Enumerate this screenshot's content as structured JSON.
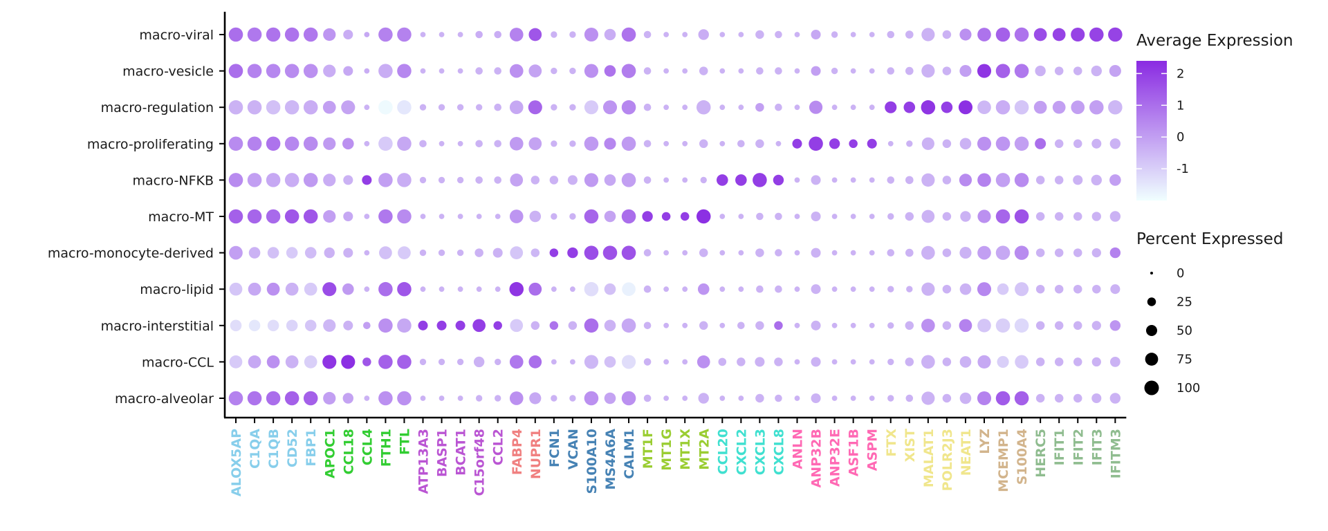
{
  "chart_data": {
    "type": "dotplot",
    "title": "",
    "xlabel": "",
    "ylabel": "",
    "rows": [
      "macro-viral",
      "macro-vesicle",
      "macro-regulation",
      "macro-proliferating",
      "macro-NFKB",
      "macro-MT",
      "macro-monocyte-derived",
      "macro-lipid",
      "macro-interstitial",
      "macro-CCL",
      "macro-alveolar"
    ],
    "genes": [
      "ALOX5AP",
      "C1QA",
      "C1QB",
      "CD52",
      "FBP1",
      "APOC1",
      "CCL18",
      "CCL4",
      "FTH1",
      "FTL",
      "ATP13A3",
      "BASP1",
      "BCAT1",
      "C15orf48",
      "CCL2",
      "FABP4",
      "NUPR1",
      "FCN1",
      "VCAN",
      "S100A10",
      "MS4A6A",
      "CALM1",
      "MT1F",
      "MT1G",
      "MT1X",
      "MT2A",
      "CCL20",
      "CXCL2",
      "CXCL3",
      "CXCL8",
      "ANLN",
      "ANP32B",
      "ANP32E",
      "ASF1B",
      "ASPM",
      "FTX",
      "XIST",
      "MALAT1",
      "POLR2J3",
      "NEAT1",
      "LYZ",
      "MCEMP1",
      "S100A4",
      "HERC5",
      "IFIT1",
      "IFIT2",
      "IFIT3",
      "IFITM3"
    ],
    "gene_colors": [
      "#87CEEB",
      "#87CEEB",
      "#87CEEB",
      "#87CEEB",
      "#87CEEB",
      "#32CD32",
      "#32CD32",
      "#32CD32",
      "#32CD32",
      "#32CD32",
      "#BA55D3",
      "#BA55D3",
      "#BA55D3",
      "#BA55D3",
      "#BA55D3",
      "#F08080",
      "#F08080",
      "#4682B4",
      "#4682B4",
      "#4682B4",
      "#4682B4",
      "#4682B4",
      "#9ACD32",
      "#9ACD32",
      "#9ACD32",
      "#9ACD32",
      "#40E0D0",
      "#40E0D0",
      "#40E0D0",
      "#40E0D0",
      "#FF69B4",
      "#FF69B4",
      "#FF69B4",
      "#FF69B4",
      "#FF69B4",
      "#F0E68C",
      "#F0E68C",
      "#F0E68C",
      "#F0E68C",
      "#F0E68C",
      "#D2B48C",
      "#D2B48C",
      "#D2B48C",
      "#8FBC8F",
      "#8FBC8F",
      "#8FBC8F",
      "#8FBC8F",
      "#8FBC8F"
    ],
    "avg_expression": [
      [
        1.0,
        0.8,
        0.9,
        0.9,
        0.8,
        0.2,
        -0.3,
        -0.2,
        0.6,
        0.6,
        -0.4,
        -0.4,
        -0.4,
        -0.3,
        -0.3,
        0.6,
        1.5,
        -0.4,
        -0.4,
        0.3,
        -0.3,
        0.9,
        -0.4,
        -0.4,
        -0.4,
        -0.3,
        -0.4,
        -0.4,
        -0.4,
        -0.4,
        -0.4,
        -0.2,
        -0.4,
        -0.4,
        -0.4,
        -0.4,
        -0.4,
        -0.4,
        -0.4,
        0.3,
        0.9,
        1.3,
        0.9,
        1.7,
        1.9,
        1.9,
        1.9,
        1.9
      ],
      [
        1.0,
        0.6,
        0.5,
        0.4,
        0.3,
        -0.3,
        -0.2,
        -0.3,
        -0.3,
        0.5,
        -0.4,
        -0.4,
        -0.4,
        -0.4,
        -0.4,
        0.3,
        -0.1,
        -0.4,
        -0.4,
        0.3,
        0.9,
        0.7,
        -0.4,
        -0.4,
        -0.4,
        -0.4,
        -0.4,
        -0.4,
        -0.4,
        -0.4,
        -0.4,
        0.0,
        -0.4,
        -0.4,
        -0.4,
        -0.4,
        -0.4,
        -0.4,
        -0.4,
        0.0,
        2.2,
        1.3,
        0.8,
        -0.4,
        -0.4,
        -0.4,
        -0.4,
        -0.1
      ],
      [
        -0.4,
        -0.4,
        -0.7,
        -0.5,
        -0.3,
        0.0,
        -0.1,
        -0.4,
        -1.9,
        -1.5,
        -0.4,
        -0.4,
        -0.4,
        -0.4,
        -0.4,
        -0.2,
        1.2,
        -0.4,
        -0.4,
        -0.9,
        0.2,
        0.5,
        -0.4,
        -0.4,
        -0.4,
        -0.4,
        -0.4,
        -0.4,
        0.0,
        -0.4,
        -0.4,
        0.4,
        -0.4,
        -0.4,
        -0.4,
        2.0,
        2.0,
        2.2,
        2.0,
        2.3,
        -0.5,
        -0.3,
        -0.8,
        0.0,
        0.0,
        0.0,
        0.0,
        -0.5
      ],
      [
        0.4,
        0.6,
        0.9,
        0.5,
        0.4,
        0.1,
        0.3,
        -0.4,
        -0.9,
        -0.2,
        -0.4,
        -0.4,
        -0.4,
        -0.4,
        -0.4,
        0.1,
        -0.1,
        -0.4,
        -0.4,
        0.1,
        0.5,
        0.1,
        -0.4,
        -0.4,
        -0.4,
        -0.4,
        -0.4,
        -0.4,
        -0.4,
        -0.4,
        2.0,
        2.0,
        2.0,
        2.0,
        2.0,
        -0.4,
        -0.4,
        -0.4,
        -0.4,
        -0.4,
        0.3,
        0.2,
        0.0,
        1.0,
        -0.4,
        -0.4,
        -0.4,
        -0.4
      ],
      [
        0.4,
        0.0,
        -0.2,
        -0.3,
        0.1,
        -0.3,
        -0.4,
        2.0,
        0.0,
        -0.3,
        -0.4,
        -0.4,
        -0.4,
        -0.4,
        -0.4,
        -0.1,
        -0.4,
        -0.4,
        -0.4,
        0.1,
        -0.2,
        0.0,
        -0.4,
        -0.4,
        -0.4,
        -0.4,
        2.0,
        2.0,
        2.0,
        2.0,
        -0.4,
        -0.4,
        -0.4,
        -0.4,
        -0.4,
        -0.4,
        -0.4,
        -0.4,
        -0.4,
        0.4,
        0.6,
        0.0,
        0.4,
        -0.4,
        -0.4,
        -0.4,
        -0.4,
        0.0
      ],
      [
        1.3,
        1.2,
        1.1,
        1.5,
        1.5,
        0.0,
        -0.2,
        -0.4,
        0.8,
        0.4,
        -0.4,
        -0.4,
        -0.4,
        -0.4,
        -0.4,
        0.2,
        -0.4,
        -0.4,
        -0.4,
        1.2,
        -0.1,
        1.0,
        2.0,
        2.0,
        2.0,
        2.3,
        -0.4,
        -0.4,
        -0.4,
        -0.4,
        -0.4,
        -0.4,
        -0.4,
        -0.4,
        -0.4,
        -0.4,
        -0.4,
        -0.4,
        -0.4,
        -0.4,
        0.3,
        1.2,
        1.6,
        -0.4,
        -0.4,
        -0.4,
        -0.4,
        -0.4
      ],
      [
        0.0,
        -0.4,
        -0.7,
        -0.9,
        -0.6,
        -0.4,
        -0.4,
        -0.4,
        -0.7,
        -0.9,
        -0.4,
        -0.4,
        -0.4,
        -0.4,
        -0.4,
        -0.8,
        -0.5,
        2.0,
        2.0,
        1.7,
        1.6,
        1.6,
        -0.4,
        -0.4,
        -0.4,
        -0.4,
        -0.4,
        -0.4,
        -0.4,
        -0.4,
        -0.4,
        -0.4,
        -0.4,
        -0.4,
        -0.4,
        -0.4,
        -0.4,
        -0.4,
        -0.4,
        -0.4,
        0.0,
        -0.2,
        0.4,
        -0.4,
        -0.4,
        -0.4,
        -0.4,
        0.6
      ],
      [
        -0.8,
        -0.2,
        0.3,
        -0.4,
        -0.9,
        1.7,
        0.1,
        -0.4,
        1.0,
        1.5,
        -0.4,
        -0.4,
        -0.4,
        -0.4,
        -0.4,
        2.2,
        1.0,
        -0.4,
        -0.4,
        -1.3,
        -0.7,
        -1.7,
        -0.4,
        -0.4,
        -0.4,
        0.2,
        -0.4,
        -0.4,
        -0.4,
        -0.4,
        -0.4,
        -0.4,
        -0.4,
        -0.4,
        -0.4,
        -0.4,
        -0.4,
        -0.4,
        -0.4,
        -0.4,
        0.5,
        -0.9,
        -0.8,
        -0.4,
        -0.4,
        -0.4,
        -0.4,
        -0.4
      ],
      [
        -1.3,
        -1.5,
        -1.3,
        -1.1,
        -0.8,
        -0.5,
        -0.4,
        0.0,
        0.3,
        -0.2,
        2.0,
        2.0,
        2.0,
        2.0,
        2.0,
        -0.9,
        -0.4,
        0.9,
        -0.4,
        1.0,
        -0.4,
        -0.2,
        -0.4,
        -0.4,
        -0.4,
        -0.4,
        -0.4,
        -0.4,
        -0.4,
        1.0,
        -0.4,
        -0.4,
        -0.4,
        -0.4,
        -0.4,
        -0.4,
        -0.4,
        0.3,
        -0.4,
        0.6,
        -0.8,
        -1.0,
        -1.2,
        -0.4,
        -0.4,
        -0.4,
        -0.4,
        0.2
      ],
      [
        -0.9,
        -0.2,
        0.3,
        -0.4,
        -1.0,
        2.2,
        2.3,
        1.5,
        1.3,
        1.3,
        -0.4,
        -0.4,
        -0.4,
        -0.4,
        -0.4,
        0.8,
        1.0,
        -0.4,
        -0.4,
        -0.5,
        -0.7,
        -1.3,
        -0.4,
        -0.4,
        -0.4,
        0.3,
        -0.4,
        -0.4,
        -0.4,
        -0.4,
        -0.4,
        -0.4,
        -0.4,
        -0.4,
        -0.4,
        -0.4,
        -0.4,
        -0.4,
        -0.4,
        -0.4,
        -0.2,
        -1.0,
        -0.9,
        -0.4,
        -0.4,
        -0.4,
        -0.4,
        -0.4
      ],
      [
        0.6,
        0.9,
        1.0,
        1.3,
        1.3,
        0.0,
        -0.1,
        -0.4,
        0.3,
        0.3,
        -0.4,
        -0.4,
        -0.4,
        -0.4,
        -0.4,
        0.3,
        -0.2,
        -0.4,
        -0.4,
        0.3,
        -0.1,
        0.3,
        -0.4,
        -0.4,
        -0.4,
        -0.4,
        -0.4,
        -0.4,
        -0.4,
        -0.4,
        -0.4,
        -0.4,
        -0.4,
        -0.4,
        -0.4,
        -0.4,
        -0.4,
        -0.4,
        -0.4,
        -0.4,
        0.6,
        1.4,
        1.3,
        -0.4,
        -0.4,
        -0.4,
        -0.4,
        -0.4
      ]
    ],
    "pct_expressed": [
      [
        95,
        95,
        95,
        95,
        95,
        70,
        35,
        5,
        95,
        95,
        5,
        5,
        5,
        15,
        15,
        85,
        75,
        10,
        10,
        90,
        55,
        95,
        15,
        5,
        5,
        45,
        5,
        5,
        25,
        15,
        5,
        35,
        10,
        5,
        5,
        15,
        20,
        80,
        25,
        60,
        85,
        95,
        95,
        75,
        75,
        90,
        95,
        95
      ],
      [
        95,
        95,
        95,
        95,
        95,
        70,
        35,
        5,
        95,
        95,
        5,
        5,
        5,
        15,
        15,
        85,
        75,
        10,
        10,
        90,
        55,
        95,
        15,
        5,
        5,
        25,
        5,
        5,
        15,
        15,
        5,
        35,
        10,
        5,
        5,
        15,
        20,
        80,
        25,
        60,
        90,
        95,
        95,
        45,
        25,
        25,
        45,
        60
      ],
      [
        95,
        95,
        95,
        95,
        95,
        75,
        90,
        5,
        95,
        95,
        10,
        10,
        10,
        10,
        15,
        85,
        90,
        10,
        10,
        90,
        90,
        95,
        15,
        5,
        5,
        95,
        5,
        5,
        25,
        15,
        5,
        80,
        5,
        5,
        5,
        60,
        55,
        95,
        55,
        90,
        85,
        95,
        95,
        75,
        75,
        85,
        95,
        95
      ],
      [
        95,
        95,
        95,
        95,
        95,
        70,
        55,
        5,
        95,
        95,
        15,
        5,
        5,
        15,
        15,
        85,
        75,
        10,
        10,
        95,
        60,
        95,
        15,
        5,
        5,
        25,
        5,
        15,
        25,
        5,
        35,
        95,
        45,
        25,
        35,
        5,
        10,
        70,
        25,
        55,
        90,
        95,
        95,
        50,
        25,
        25,
        35,
        45
      ],
      [
        95,
        95,
        95,
        95,
        95,
        70,
        35,
        35,
        95,
        95,
        10,
        10,
        10,
        15,
        15,
        75,
        25,
        25,
        35,
        90,
        55,
        95,
        15,
        5,
        5,
        10,
        55,
        55,
        95,
        45,
        5,
        35,
        5,
        5,
        5,
        15,
        20,
        80,
        25,
        70,
        85,
        95,
        95,
        25,
        25,
        35,
        45,
        55
      ],
      [
        95,
        95,
        95,
        95,
        95,
        70,
        35,
        5,
        95,
        95,
        5,
        5,
        5,
        5,
        5,
        85,
        55,
        10,
        10,
        95,
        55,
        95,
        45,
        25,
        25,
        95,
        5,
        5,
        15,
        15,
        5,
        35,
        5,
        5,
        5,
        10,
        25,
        75,
        25,
        45,
        80,
        95,
        95,
        25,
        25,
        25,
        30,
        45
      ],
      [
        85,
        55,
        55,
        55,
        55,
        45,
        35,
        5,
        75,
        75,
        10,
        10,
        10,
        25,
        35,
        75,
        25,
        25,
        45,
        95,
        95,
        95,
        15,
        5,
        5,
        25,
        5,
        5,
        25,
        15,
        5,
        35,
        5,
        5,
        5,
        15,
        20,
        85,
        25,
        60,
        85,
        95,
        95,
        25,
        25,
        25,
        30,
        45
      ],
      [
        75,
        75,
        75,
        75,
        75,
        90,
        55,
        5,
        95,
        95,
        5,
        5,
        5,
        5,
        5,
        95,
        75,
        5,
        5,
        95,
        55,
        85,
        15,
        5,
        5,
        55,
        5,
        5,
        15,
        15,
        5,
        35,
        5,
        5,
        5,
        10,
        10,
        80,
        25,
        55,
        90,
        55,
        90,
        25,
        25,
        25,
        25,
        35
      ],
      [
        55,
        55,
        55,
        55,
        55,
        70,
        35,
        15,
        95,
        95,
        35,
        35,
        35,
        75,
        25,
        75,
        25,
        25,
        25,
        95,
        55,
        95,
        15,
        5,
        5,
        25,
        5,
        15,
        25,
        25,
        5,
        35,
        5,
        5,
        5,
        10,
        25,
        85,
        25,
        75,
        85,
        95,
        95,
        25,
        25,
        25,
        30,
        45
      ],
      [
        75,
        75,
        75,
        75,
        75,
        90,
        90,
        25,
        95,
        95,
        10,
        10,
        10,
        45,
        10,
        85,
        75,
        5,
        5,
        90,
        55,
        90,
        15,
        5,
        5,
        75,
        20,
        25,
        35,
        25,
        5,
        35,
        5,
        5,
        5,
        10,
        25,
        85,
        25,
        55,
        80,
        60,
        85,
        25,
        25,
        25,
        30,
        40
      ],
      [
        95,
        95,
        95,
        95,
        95,
        70,
        45,
        5,
        95,
        95,
        5,
        5,
        5,
        10,
        10,
        85,
        60,
        10,
        10,
        95,
        55,
        95,
        15,
        5,
        5,
        45,
        5,
        5,
        25,
        15,
        5,
        35,
        5,
        5,
        5,
        10,
        15,
        80,
        25,
        55,
        90,
        95,
        95,
        25,
        25,
        25,
        35,
        45
      ]
    ],
    "color_scale": {
      "low": "#F0FFFF",
      "high": "#8A2BE2",
      "min": -2,
      "max": 2.4
    },
    "size_scale": {
      "min": 0,
      "max": 100
    },
    "legend": {
      "color_title": "Average Expression",
      "color_ticks": [
        {
          "value": 2,
          "label": "2"
        },
        {
          "value": 1,
          "label": "1"
        },
        {
          "value": 0,
          "label": "0"
        },
        {
          "value": -1,
          "label": "-1"
        }
      ],
      "size_title": "Percent Expressed",
      "size_ticks": [
        {
          "value": 0,
          "label": "0"
        },
        {
          "value": 25,
          "label": "25"
        },
        {
          "value": 50,
          "label": "50"
        },
        {
          "value": 75,
          "label": "75"
        },
        {
          "value": 100,
          "label": "100"
        }
      ]
    }
  }
}
